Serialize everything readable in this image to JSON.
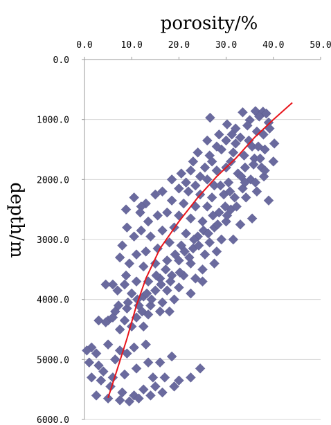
{
  "chart_data": {
    "type": "scatter",
    "title": "porosity/%",
    "xlabel": "porosity/%",
    "ylabel": "depth/m",
    "x_axis_position": "top",
    "y_axis_inverted": true,
    "xlim": [
      0,
      50
    ],
    "ylim": [
      0,
      6000
    ],
    "x_ticks": [
      "0.0",
      "10.0",
      "20.0",
      "30.0",
      "40.0",
      "50.0"
    ],
    "y_ticks": [
      "0.0",
      "1000.0",
      "2000.0",
      "3000.0",
      "4000.0",
      "5000.0",
      "6000.0"
    ],
    "grid": "horizontal",
    "marker": "diamond",
    "colors": {
      "points": "#6a6a9e",
      "trend": "#e8141a"
    },
    "series": [
      {
        "type": "scatter",
        "points": [
          [
            33.5,
            880
          ],
          [
            36.2,
            860
          ],
          [
            37.8,
            870
          ],
          [
            38.5,
            900
          ],
          [
            26.6,
            970
          ],
          [
            30.2,
            1080
          ],
          [
            35.0,
            1010
          ],
          [
            37.0,
            950
          ],
          [
            39.0,
            1050
          ],
          [
            32.0,
            1150
          ],
          [
            34.5,
            1100
          ],
          [
            36.5,
            1200
          ],
          [
            37.9,
            1250
          ],
          [
            40.2,
            1400
          ],
          [
            33.0,
            1300
          ],
          [
            28.5,
            1250
          ],
          [
            30.0,
            1350
          ],
          [
            35.5,
            1450
          ],
          [
            38.2,
            1500
          ],
          [
            40.0,
            1700
          ],
          [
            29.0,
            1500
          ],
          [
            31.5,
            1550
          ],
          [
            33.8,
            1600
          ],
          [
            36.0,
            1650
          ],
          [
            37.5,
            1800
          ],
          [
            26.5,
            1600
          ],
          [
            24.0,
            1550
          ],
          [
            27.0,
            1700
          ],
          [
            31.0,
            1700
          ],
          [
            34.0,
            1800
          ],
          [
            38.0,
            1950
          ],
          [
            35.2,
            2000
          ],
          [
            32.5,
            1900
          ],
          [
            30.0,
            1800
          ],
          [
            28.0,
            1850
          ],
          [
            25.5,
            1800
          ],
          [
            23.0,
            1700
          ],
          [
            22.5,
            1850
          ],
          [
            24.5,
            1950
          ],
          [
            26.0,
            2000
          ],
          [
            20.5,
            1900
          ],
          [
            18.5,
            2000
          ],
          [
            21.5,
            2050
          ],
          [
            23.5,
            2100
          ],
          [
            27.5,
            2100
          ],
          [
            30.5,
            2050
          ],
          [
            33.5,
            2150
          ],
          [
            36.5,
            2200
          ],
          [
            39.0,
            2350
          ],
          [
            29.5,
            2250
          ],
          [
            27.0,
            2300
          ],
          [
            24.5,
            2250
          ],
          [
            22.0,
            2200
          ],
          [
            20.0,
            2150
          ],
          [
            16.5,
            2200
          ],
          [
            15.0,
            2250
          ],
          [
            13.0,
            2400
          ],
          [
            12.0,
            2450
          ],
          [
            10.5,
            2300
          ],
          [
            11.8,
            2550
          ],
          [
            8.8,
            2500
          ],
          [
            9.0,
            2800
          ],
          [
            8.0,
            3100
          ],
          [
            7.5,
            3300
          ],
          [
            8.8,
            3600
          ],
          [
            18.5,
            2350
          ],
          [
            21.0,
            2400
          ],
          [
            23.5,
            2450
          ],
          [
            26.0,
            2450
          ],
          [
            28.5,
            2550
          ],
          [
            31.0,
            2500
          ],
          [
            35.5,
            2650
          ],
          [
            33.0,
            2750
          ],
          [
            30.0,
            2700
          ],
          [
            27.5,
            2800
          ],
          [
            25.0,
            2700
          ],
          [
            22.5,
            2650
          ],
          [
            20.0,
            2600
          ],
          [
            17.5,
            2550
          ],
          [
            15.5,
            2600
          ],
          [
            13.5,
            2700
          ],
          [
            12.0,
            2850
          ],
          [
            10.5,
            2950
          ],
          [
            14.0,
            2950
          ],
          [
            16.5,
            2850
          ],
          [
            19.0,
            2800
          ],
          [
            21.5,
            2900
          ],
          [
            24.0,
            2950
          ],
          [
            26.5,
            3050
          ],
          [
            29.0,
            3000
          ],
          [
            31.5,
            3000
          ],
          [
            28.0,
            3200
          ],
          [
            25.5,
            3250
          ],
          [
            23.0,
            3150
          ],
          [
            20.5,
            3100
          ],
          [
            18.0,
            3050
          ],
          [
            15.5,
            3150
          ],
          [
            13.0,
            3200
          ],
          [
            11.0,
            3250
          ],
          [
            9.5,
            3400
          ],
          [
            12.5,
            3450
          ],
          [
            15.0,
            3400
          ],
          [
            17.5,
            3350
          ],
          [
            20.0,
            3350
          ],
          [
            22.5,
            3400
          ],
          [
            25.0,
            3500
          ],
          [
            27.5,
            3400
          ],
          [
            23.5,
            3650
          ],
          [
            21.0,
            3600
          ],
          [
            18.5,
            3600
          ],
          [
            16.0,
            3650
          ],
          [
            13.5,
            3700
          ],
          [
            11.0,
            3700
          ],
          [
            8.5,
            3750
          ],
          [
            6.0,
            3750
          ],
          [
            4.5,
            3750
          ],
          [
            7.0,
            3850
          ],
          [
            10.0,
            3900
          ],
          [
            12.5,
            3950
          ],
          [
            15.0,
            3850
          ],
          [
            17.5,
            3850
          ],
          [
            20.0,
            3800
          ],
          [
            22.5,
            3900
          ],
          [
            25.0,
            3700
          ],
          [
            19.0,
            4000
          ],
          [
            16.5,
            4050
          ],
          [
            14.0,
            4100
          ],
          [
            11.5,
            4100
          ],
          [
            9.0,
            4150
          ],
          [
            6.5,
            4200
          ],
          [
            5.0,
            4350
          ],
          [
            6.0,
            4300
          ],
          [
            8.5,
            4350
          ],
          [
            11.0,
            4300
          ],
          [
            13.5,
            4250
          ],
          [
            16.0,
            4200
          ],
          [
            18.0,
            4200
          ],
          [
            10.0,
            4450
          ],
          [
            7.5,
            4500
          ],
          [
            12.5,
            4450
          ],
          [
            3.0,
            4350
          ],
          [
            4.5,
            4380
          ],
          [
            1.5,
            4800
          ],
          [
            2.5,
            4900
          ],
          [
            0.5,
            4850
          ],
          [
            1.0,
            5050
          ],
          [
            3.0,
            5100
          ],
          [
            5.0,
            4750
          ],
          [
            7.5,
            4850
          ],
          [
            10.5,
            4800
          ],
          [
            13.0,
            4750
          ],
          [
            9.0,
            4900
          ],
          [
            6.5,
            5000
          ],
          [
            4.0,
            5200
          ],
          [
            6.0,
            5300
          ],
          [
            8.5,
            5250
          ],
          [
            11.0,
            5150
          ],
          [
            13.5,
            5050
          ],
          [
            16.0,
            5050
          ],
          [
            18.5,
            4950
          ],
          [
            20.0,
            5350
          ],
          [
            22.5,
            5300
          ],
          [
            24.5,
            5150
          ],
          [
            17.0,
            5300
          ],
          [
            15.0,
            5450
          ],
          [
            12.5,
            5500
          ],
          [
            10.5,
            5600
          ],
          [
            8.0,
            5550
          ],
          [
            5.5,
            5450
          ],
          [
            3.5,
            5350
          ],
          [
            1.5,
            5300
          ],
          [
            2.5,
            5600
          ],
          [
            5.0,
            5650
          ],
          [
            7.5,
            5680
          ],
          [
            9.5,
            5700
          ],
          [
            11.5,
            5650
          ],
          [
            14.0,
            5600
          ],
          [
            16.5,
            5550
          ],
          [
            19.0,
            5450
          ],
          [
            14.5,
            5300
          ],
          [
            32.0,
            1400
          ],
          [
            34.8,
            1350
          ],
          [
            36.8,
            1450
          ],
          [
            31.2,
            1250
          ],
          [
            28.0,
            1450
          ],
          [
            26.0,
            1350
          ],
          [
            39.2,
            1150
          ],
          [
            37.2,
            1650
          ],
          [
            35.8,
            1750
          ],
          [
            33.2,
            1950
          ],
          [
            31.8,
            2300
          ],
          [
            29.8,
            2450
          ],
          [
            27.2,
            2600
          ],
          [
            25.2,
            2850
          ],
          [
            23.2,
            3000
          ],
          [
            21.2,
            3200
          ],
          [
            19.2,
            3250
          ],
          [
            17.2,
            3500
          ],
          [
            15.2,
            3600
          ],
          [
            13.2,
            3900
          ],
          [
            11.2,
            4000
          ],
          [
            9.2,
            4050
          ],
          [
            7.2,
            4100
          ],
          [
            12.2,
            4200
          ],
          [
            14.2,
            4000
          ],
          [
            16.2,
            3750
          ],
          [
            18.2,
            3700
          ],
          [
            20.2,
            3550
          ],
          [
            22.2,
            3300
          ],
          [
            24.2,
            3100
          ],
          [
            26.2,
            2900
          ],
          [
            28.2,
            2750
          ],
          [
            30.2,
            2600
          ],
          [
            32.2,
            2450
          ],
          [
            34.2,
            2300
          ],
          [
            36.2,
            2050
          ],
          [
            38.2,
            1850
          ],
          [
            34.0,
            2050
          ],
          [
            30.8,
            2200
          ],
          [
            28.8,
            2100
          ]
        ]
      },
      {
        "type": "line",
        "points": [
          [
            5,
            5640
          ],
          [
            7,
            5150
          ],
          [
            9,
            4650
          ],
          [
            11,
            4100
          ],
          [
            13,
            3650
          ],
          [
            16,
            3150
          ],
          [
            20,
            2700
          ],
          [
            24,
            2300
          ],
          [
            28,
            1950
          ],
          [
            32,
            1650
          ],
          [
            36,
            1300
          ],
          [
            40,
            1000
          ],
          [
            44,
            720
          ]
        ]
      }
    ]
  }
}
